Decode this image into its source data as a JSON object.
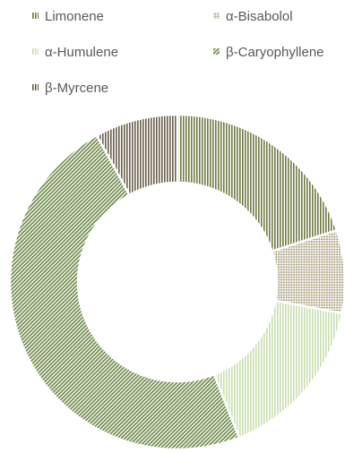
{
  "chart_data": {
    "type": "donut",
    "legend_position": "top",
    "slices": [
      {
        "label": "Limonene",
        "value": 20,
        "color": "#6f7a45",
        "pattern": "vertical-lines"
      },
      {
        "label": "α-Bisabolol",
        "value": 8,
        "color": "#b3a98a",
        "pattern": "diagonal-checks"
      },
      {
        "label": "α-Humulene",
        "value": 16,
        "color": "#c9dfb0",
        "pattern": "vertical-lines"
      },
      {
        "label": "β-Caryophyllene",
        "value": 48,
        "color": "#6e8a4a",
        "pattern": "diagonal-lines"
      },
      {
        "label": "β-Myrcene",
        "value": 8,
        "color": "#6b5e4b",
        "pattern": "vertical-lines"
      }
    ]
  }
}
